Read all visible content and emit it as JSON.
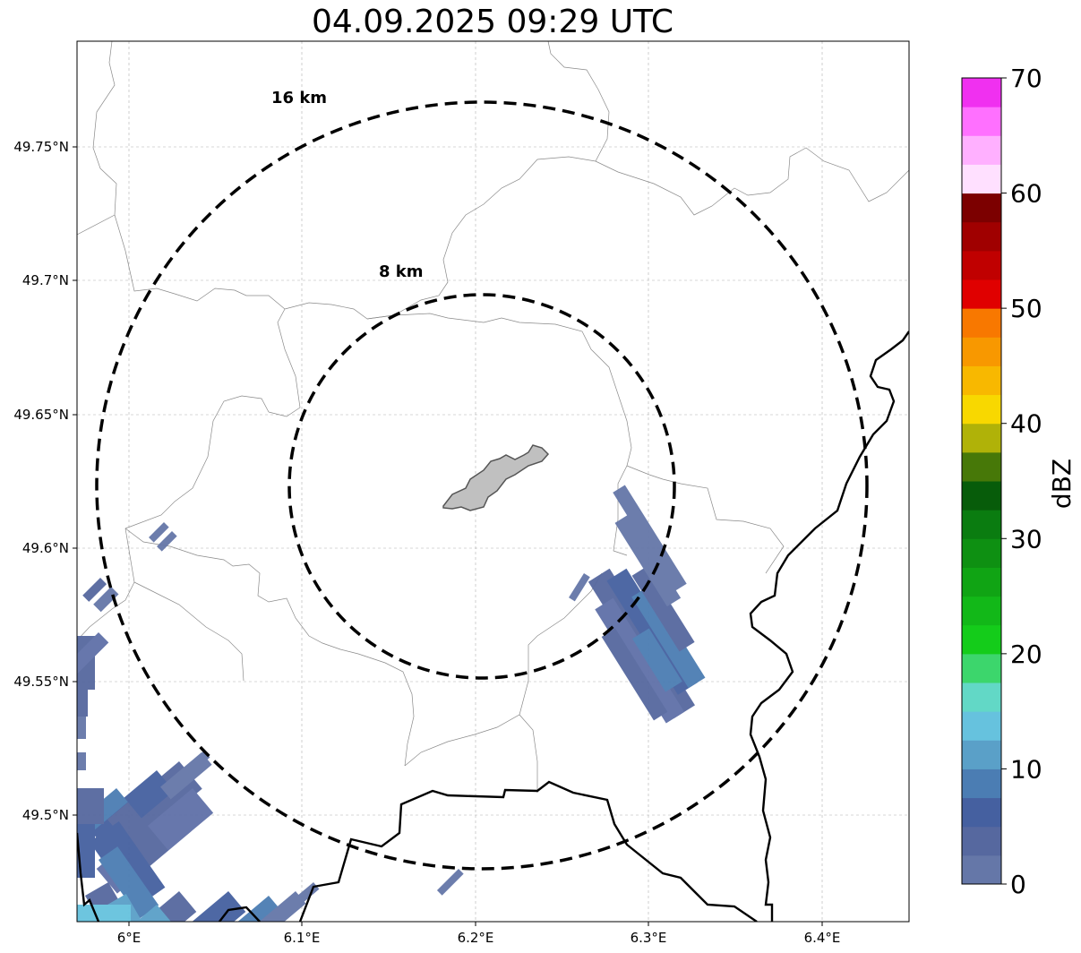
{
  "title": "04.09.2025 09:29 UTC",
  "map": {
    "lon_ticks": [
      "6°E",
      "6.1°E",
      "6.2°E",
      "6.3°E",
      "6.4°E"
    ],
    "lat_ticks": [
      "49.75°N",
      "49.7°N",
      "49.65°N",
      "49.6°N",
      "49.55°N",
      "49.5°N"
    ],
    "rings": [
      {
        "label": "16 km",
        "radius_km": 16
      },
      {
        "label": "8 km",
        "radius_km": 8
      }
    ],
    "gridlines": true
  },
  "colorbar": {
    "label": "dBZ",
    "ticks": [
      "0",
      "10",
      "20",
      "30",
      "40",
      "50",
      "60",
      "70"
    ],
    "min": 0,
    "max": 70,
    "step": 2.5,
    "colors": [
      "#6577a8",
      "#56689f",
      "#4560a0",
      "#4b7db3",
      "#5aa0c8",
      "#66c2de",
      "#62d8c6",
      "#3cd66c",
      "#14cc1a",
      "#12b818",
      "#10a414",
      "#0e9012",
      "#0a7c10",
      "#075c0a",
      "#477808",
      "#b0b208",
      "#f8d800",
      "#f8b800",
      "#f89800",
      "#f87800",
      "#e00000",
      "#c00000",
      "#a00000",
      "#7c0000",
      "#ffe0ff",
      "#ffb0ff",
      "#ff70ff",
      "#f030f0"
    ]
  }
}
